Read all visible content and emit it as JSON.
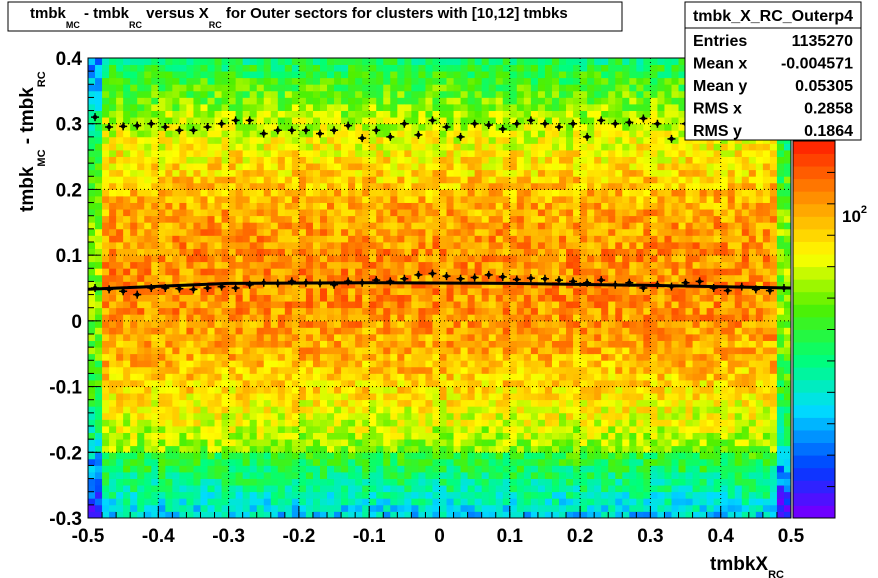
{
  "title": {
    "parts": [
      "tmbk",
      "MC",
      " - tmbk",
      "RC",
      " versus X",
      "RC",
      " for Outer sectors for clusters with [10,12] tmbks"
    ]
  },
  "stats": {
    "name": "tmbk_X_RC_Outerp4",
    "rows": [
      {
        "label": "Entries",
        "value": "1135270"
      },
      {
        "label": "Mean x",
        "value": "-0.004571"
      },
      {
        "label": "Mean y",
        "value": "0.05305"
      },
      {
        "label": "RMS x",
        "value": "0.2858"
      },
      {
        "label": "RMS y",
        "value": "0.1864"
      }
    ]
  },
  "palette_label": {
    "base": "10",
    "exp": "2"
  },
  "chart_data": {
    "type": "heatmap",
    "xlabel": {
      "main": "tmbkX",
      "sub": "RC"
    },
    "ylabel": {
      "p1": "tmbk",
      "s1": "MC",
      "p2": " - tmbk",
      "s2": "RC"
    },
    "xlim": [
      -0.5,
      0.5
    ],
    "ylim": [
      -0.3,
      0.4
    ],
    "xticks": [
      "-0.5",
      "-0.4",
      "-0.3",
      "-0.2",
      "-0.1",
      "0",
      "0.1",
      "0.2",
      "0.3",
      "0.4",
      "0.5"
    ],
    "yticks": [
      "-0.3",
      "-0.2",
      "-0.1",
      "0",
      "0.1",
      "0.2",
      "0.3",
      "0.4"
    ],
    "grid": true,
    "colorscale": "rainbow, log z",
    "mean_profile_x": [
      -0.49,
      -0.47,
      -0.45,
      -0.43,
      -0.41,
      -0.39,
      -0.37,
      -0.35,
      -0.33,
      -0.31,
      -0.29,
      -0.27,
      -0.25,
      -0.23,
      -0.21,
      -0.19,
      -0.17,
      -0.15,
      -0.13,
      -0.11,
      -0.09,
      -0.07,
      -0.05,
      -0.03,
      -0.01,
      0.01,
      0.03,
      0.05,
      0.07,
      0.09,
      0.11,
      0.13,
      0.15,
      0.17,
      0.19,
      0.21,
      0.23,
      0.25,
      0.27,
      0.29,
      0.31,
      0.33,
      0.35,
      0.37,
      0.39,
      0.41,
      0.43,
      0.45,
      0.47,
      0.49
    ],
    "mean_profile_y": [
      0.05,
      0.048,
      0.045,
      0.04,
      0.05,
      0.05,
      0.049,
      0.048,
      0.05,
      0.052,
      0.05,
      0.055,
      0.058,
      0.057,
      0.06,
      0.058,
      0.057,
      0.055,
      0.06,
      0.058,
      0.062,
      0.06,
      0.064,
      0.07,
      0.072,
      0.068,
      0.064,
      0.066,
      0.07,
      0.067,
      0.063,
      0.065,
      0.064,
      0.062,
      0.06,
      0.058,
      0.062,
      0.055,
      0.058,
      0.05,
      0.055,
      0.052,
      0.058,
      0.06,
      0.05,
      0.046,
      0.052,
      0.048,
      0.046,
      0.05
    ],
    "upper_points_x": [
      -0.49,
      -0.47,
      -0.45,
      -0.43,
      -0.41,
      -0.39,
      -0.37,
      -0.35,
      -0.33,
      -0.31,
      -0.29,
      -0.27,
      -0.25,
      -0.23,
      -0.21,
      -0.19,
      -0.17,
      -0.15,
      -0.13,
      -0.11,
      -0.09,
      -0.07,
      -0.05,
      -0.03,
      -0.01,
      0.01,
      0.03,
      0.05,
      0.07,
      0.09,
      0.11,
      0.13,
      0.15,
      0.17,
      0.19,
      0.21,
      0.23,
      0.25,
      0.27,
      0.29,
      0.31,
      0.33,
      0.35,
      0.37,
      0.39,
      0.41,
      0.43,
      0.45,
      0.47,
      0.49
    ],
    "upper_points_y": [
      0.31,
      0.295,
      0.296,
      0.297,
      0.3,
      0.295,
      0.29,
      0.29,
      0.295,
      0.3,
      0.305,
      0.305,
      0.285,
      0.29,
      0.29,
      0.29,
      0.285,
      0.29,
      0.297,
      0.278,
      0.29,
      0.28,
      0.3,
      0.283,
      0.305,
      0.295,
      0.28,
      0.3,
      0.298,
      0.292,
      0.3,
      0.305,
      0.3,
      0.295,
      0.3,
      0.28,
      0.305,
      0.3,
      0.302,
      0.308,
      0.3,
      0.277,
      0.3,
      0.296,
      0.295,
      0.29,
      0.29,
      0.298,
      0.3,
      0.285
    ],
    "fit_line": {
      "x": [
        -0.5,
        -0.3,
        -0.1,
        0.1,
        0.3,
        0.5
      ],
      "y": [
        0.048,
        0.057,
        0.058,
        0.057,
        0.054,
        0.05
      ]
    }
  }
}
